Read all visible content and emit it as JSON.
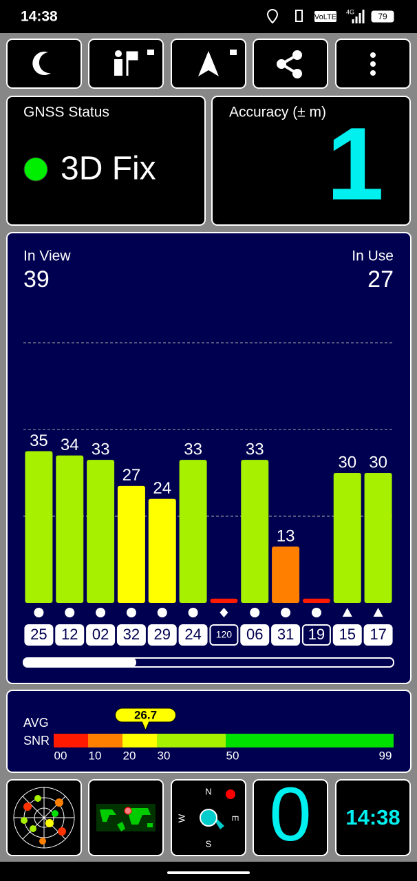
{
  "status_bar": {
    "time": "14:38",
    "network": "VoLTE",
    "signal": "4G",
    "battery": "79"
  },
  "gnss_status": {
    "label": "GNSS Status",
    "value": "3D Fix"
  },
  "accuracy": {
    "label": "Accuracy (± m)",
    "value": "1"
  },
  "satellites": {
    "in_view_label": "In View",
    "in_view": "39",
    "in_use_label": "In Use",
    "in_use": "27"
  },
  "chart_data": {
    "type": "bar",
    "categories": [
      "25",
      "12",
      "02",
      "32",
      "29",
      "24",
      "120",
      "06",
      "31",
      "19",
      "15",
      "17"
    ],
    "values": [
      35,
      34,
      33,
      27,
      24,
      33,
      1,
      33,
      13,
      1,
      30,
      30
    ],
    "value_labels": [
      "35",
      "34",
      "33",
      "27",
      "24",
      "33",
      null,
      "33",
      "13",
      null,
      "30",
      "30"
    ],
    "symbols": [
      "circle",
      "circle",
      "circle",
      "circle",
      "circle",
      "circle",
      "diamond",
      "circle",
      "circle",
      "circle",
      "triangle",
      "triangle"
    ],
    "in_use": [
      true,
      true,
      true,
      true,
      true,
      true,
      false,
      true,
      true,
      false,
      true,
      true
    ],
    "ylim": [
      0,
      60
    ],
    "yticks": [
      20,
      40,
      60
    ],
    "grid": true
  },
  "snr": {
    "label_1": "AVG",
    "label_2": "SNR",
    "average": 26.7,
    "ticks": [
      {
        "value": 0,
        "label": "00"
      },
      10,
      20,
      30,
      50,
      99
    ],
    "colors": [
      "#ff1a00",
      "#ff8000",
      "#ffff00",
      "#a6f000",
      "#00e000"
    ]
  },
  "compass": {
    "n": "N",
    "e": "E",
    "s": "S",
    "w": "W"
  },
  "bottom": {
    "counter": "0",
    "clock": "14:38"
  }
}
